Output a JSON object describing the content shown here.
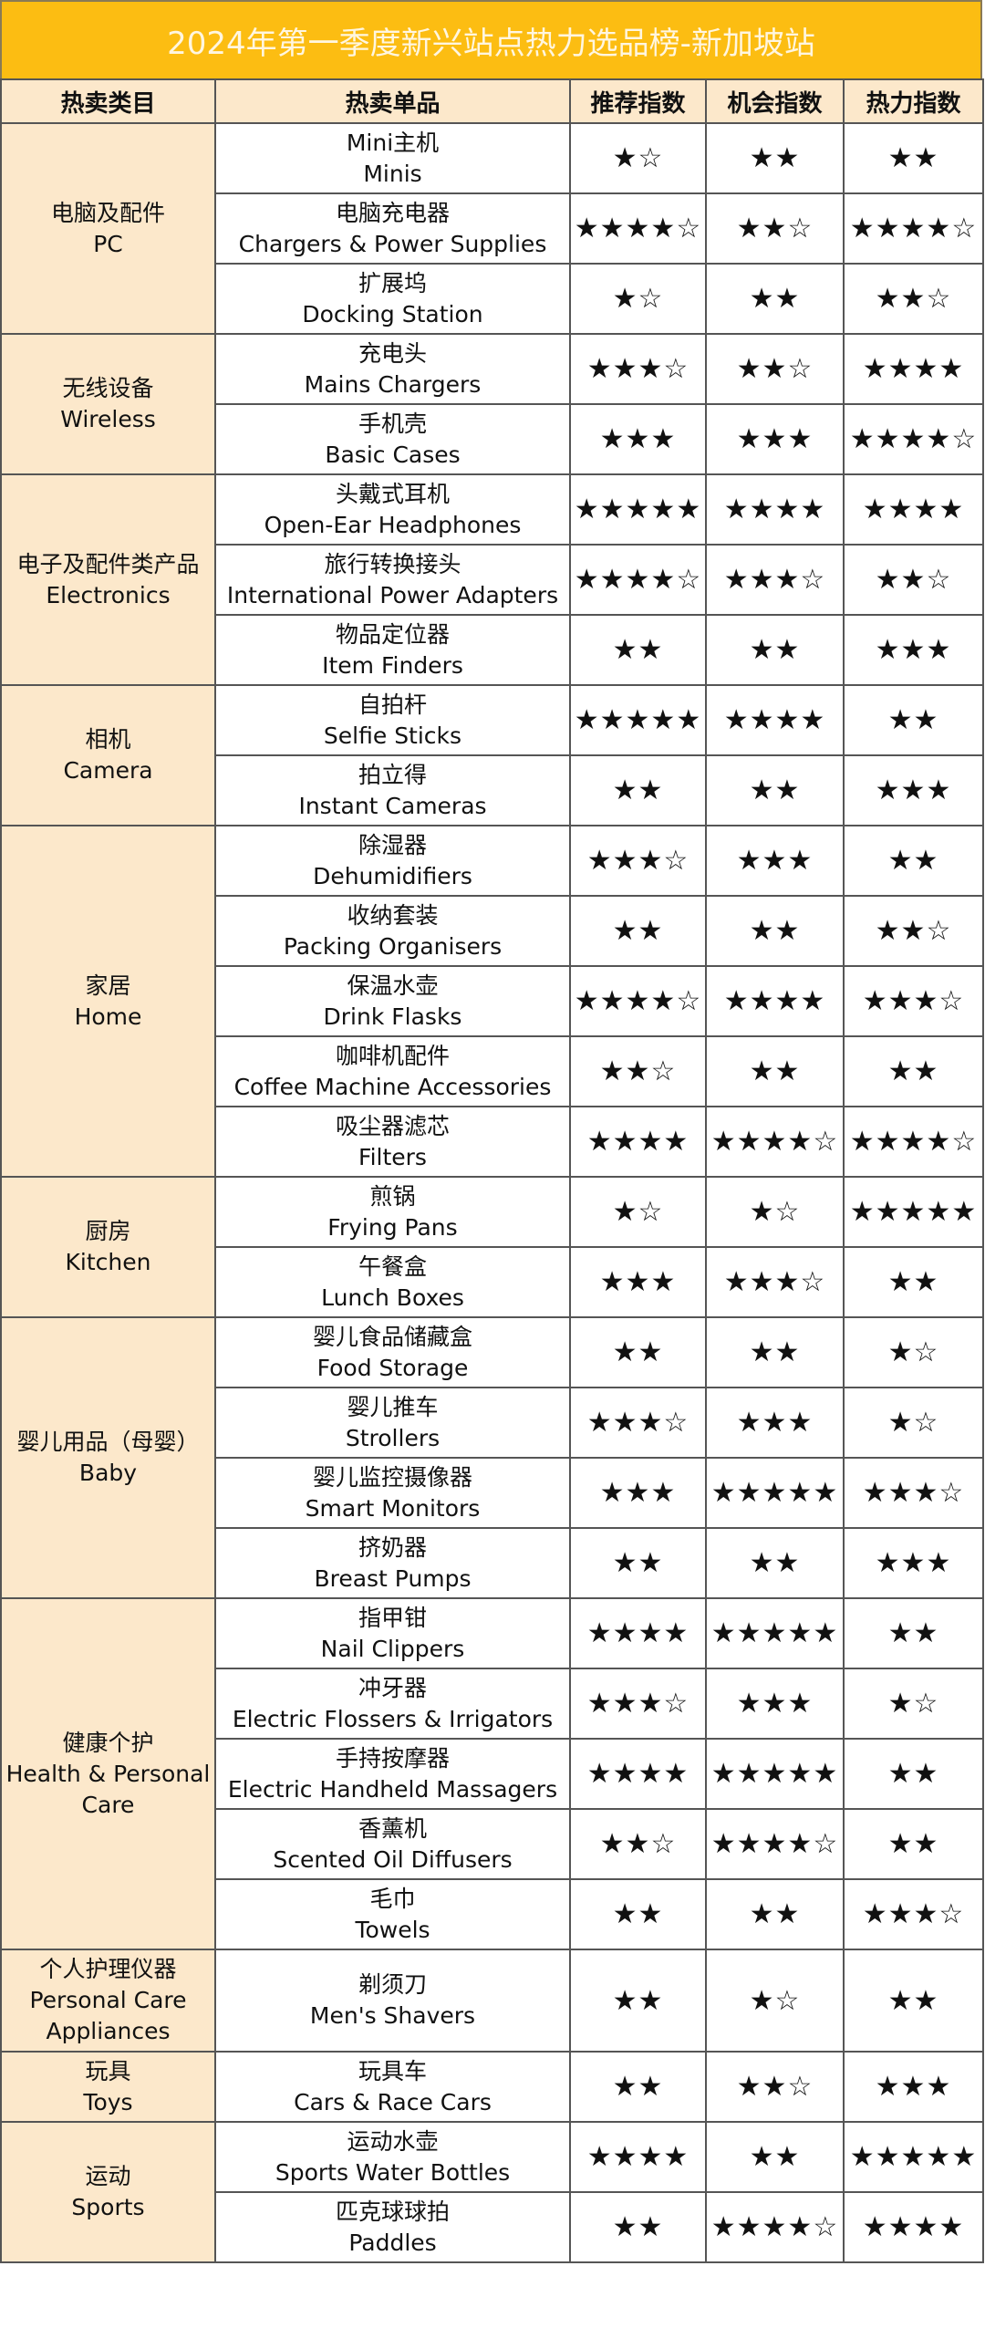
{
  "title": "2024年第一季度新兴站点热力选品榜-新加坡站",
  "colors": {
    "title_bg": "#FCBD12",
    "header_bg": "#FCE8CB",
    "title_text": "#FFF6E0"
  },
  "headers": [
    "热卖类目",
    "热卖单品",
    "推荐指数",
    "机会指数",
    "热力指数"
  ],
  "categories": [
    {
      "zh": "电脑及配件",
      "en": "PC",
      "items": [
        {
          "zh": "Mini主机",
          "en": "Minis",
          "rec": "★☆",
          "opp": "★★",
          "heat": "★★"
        },
        {
          "zh": "电脑充电器",
          "en": "Chargers & Power Supplies",
          "rec": "★★★★☆",
          "opp": "★★☆",
          "heat": "★★★★☆"
        },
        {
          "zh": "扩展坞",
          "en": "Docking Station",
          "rec": "★☆",
          "opp": "★★",
          "heat": "★★☆"
        }
      ]
    },
    {
      "zh": "无线设备",
      "en": "Wireless",
      "items": [
        {
          "zh": "充电头",
          "en": "Mains Chargers",
          "rec": "★★★☆",
          "opp": "★★☆",
          "heat": "★★★★"
        },
        {
          "zh": "手机壳",
          "en": "Basic Cases",
          "rec": "★★★",
          "opp": "★★★",
          "heat": "★★★★☆"
        }
      ]
    },
    {
      "zh": "电子及配件类产品",
      "en": "Electronics",
      "items": [
        {
          "zh": "头戴式耳机",
          "en": "Open-Ear Headphones",
          "rec": "★★★★★",
          "opp": "★★★★",
          "heat": "★★★★"
        },
        {
          "zh": "旅行转换接头",
          "en": "International Power Adapters",
          "rec": "★★★★☆",
          "opp": "★★★☆",
          "heat": "★★☆"
        },
        {
          "zh": "物品定位器",
          "en": "Item Finders",
          "rec": "★★",
          "opp": "★★",
          "heat": "★★★"
        }
      ]
    },
    {
      "zh": "相机",
      "en": "Camera",
      "items": [
        {
          "zh": "自拍杆",
          "en": "Selfie Sticks",
          "rec": "★★★★★",
          "opp": "★★★★",
          "heat": "★★"
        },
        {
          "zh": "拍立得",
          "en": "Instant Cameras",
          "rec": "★★",
          "opp": "★★",
          "heat": "★★★"
        }
      ]
    },
    {
      "zh": "家居",
      "en": "Home",
      "items": [
        {
          "zh": "除湿器",
          "en": "Dehumidifiers",
          "rec": "★★★☆",
          "opp": "★★★",
          "heat": "★★"
        },
        {
          "zh": "收纳套装",
          "en": "Packing Organisers",
          "rec": "★★",
          "opp": "★★",
          "heat": "★★☆"
        },
        {
          "zh": "保温水壶",
          "en": "Drink Flasks",
          "rec": "★★★★☆",
          "opp": "★★★★",
          "heat": "★★★☆"
        },
        {
          "zh": "咖啡机配件",
          "en": "Coffee Machine Accessories",
          "rec": "★★☆",
          "opp": "★★",
          "heat": "★★"
        },
        {
          "zh": "吸尘器滤芯",
          "en": "Filters",
          "rec": "★★★★",
          "opp": "★★★★☆",
          "heat": "★★★★☆"
        }
      ]
    },
    {
      "zh": "厨房",
      "en": "Kitchen",
      "items": [
        {
          "zh": "煎锅",
          "en": "Frying Pans",
          "rec": "★☆",
          "opp": "★☆",
          "heat": "★★★★★"
        },
        {
          "zh": "午餐盒",
          "en": "Lunch Boxes",
          "rec": "★★★",
          "opp": "★★★☆",
          "heat": "★★"
        }
      ]
    },
    {
      "zh": "婴儿用品（母婴）",
      "en": "Baby",
      "items": [
        {
          "zh": "婴儿食品储藏盒",
          "en": "Food Storage",
          "rec": "★★",
          "opp": "★★",
          "heat": "★☆"
        },
        {
          "zh": "婴儿推车",
          "en": "Strollers",
          "rec": "★★★☆",
          "opp": "★★★",
          "heat": "★☆"
        },
        {
          "zh": "婴儿监控摄像器",
          "en": "Smart Monitors",
          "rec": "★★★",
          "opp": "★★★★★",
          "heat": "★★★☆"
        },
        {
          "zh": "挤奶器",
          "en": "Breast Pumps",
          "rec": "★★",
          "opp": "★★",
          "heat": "★★★"
        }
      ]
    },
    {
      "zh": "健康个护",
      "en": "Health & Personal Care",
      "items": [
        {
          "zh": "指甲钳",
          "en": "Nail Clippers",
          "rec": "★★★★",
          "opp": "★★★★★",
          "heat": "★★"
        },
        {
          "zh": "冲牙器",
          "en": "Electric Flossers & Irrigators",
          "rec": "★★★☆",
          "opp": "★★★",
          "heat": "★☆"
        },
        {
          "zh": "手持按摩器",
          "en": "Electric Handheld Massagers",
          "rec": "★★★★",
          "opp": "★★★★★",
          "heat": "★★"
        },
        {
          "zh": "香薰机",
          "en": "Scented Oil Diffusers",
          "rec": "★★☆",
          "opp": "★★★★☆",
          "heat": "★★"
        },
        {
          "zh": "毛巾",
          "en": "Towels",
          "rec": "★★",
          "opp": "★★",
          "heat": "★★★☆"
        }
      ]
    },
    {
      "zh": "个人护理仪器",
      "en": "Personal Care Appliances",
      "tall": true,
      "items": [
        {
          "zh": "剃须刀",
          "en": "Men's Shavers",
          "rec": "★★",
          "opp": "★☆",
          "heat": "★★"
        }
      ]
    },
    {
      "zh": "玩具",
      "en": "Toys",
      "items": [
        {
          "zh": "玩具车",
          "en": "Cars & Race Cars",
          "rec": "★★",
          "opp": "★★☆",
          "heat": "★★★"
        }
      ]
    },
    {
      "zh": "运动",
      "en": "Sports",
      "items": [
        {
          "zh": "运动水壶",
          "en": "Sports Water Bottles",
          "rec": "★★★★",
          "opp": "★★",
          "heat": "★★★★★"
        },
        {
          "zh": "匹克球球拍",
          "en": "Paddles",
          "rec": "★★",
          "opp": "★★★★☆",
          "heat": "★★★★"
        }
      ]
    }
  ]
}
